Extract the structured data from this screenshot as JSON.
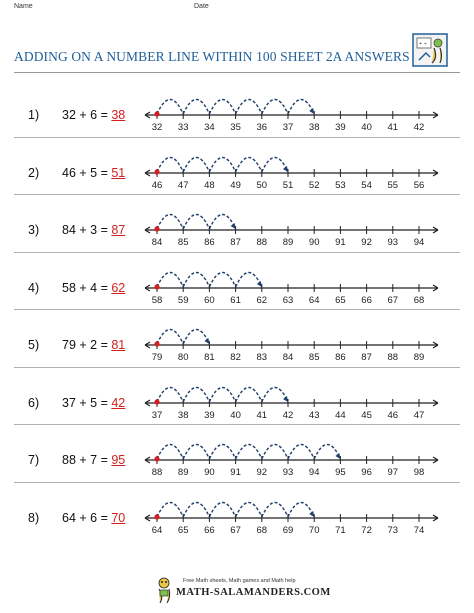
{
  "header": {
    "name_label": "Name",
    "date_label": "Date"
  },
  "title": "ADDING ON A NUMBER LINE WITHIN 100 SHEET 2A ANSWERS",
  "questions": [
    {
      "number": "1)",
      "expression": "32 + 6 =",
      "answer": "38",
      "start": 32,
      "jumps": 6
    },
    {
      "number": "2)",
      "expression": "46 + 5 =",
      "answer": "51",
      "start": 46,
      "jumps": 5
    },
    {
      "number": "3)",
      "expression": "84 + 3 =",
      "answer": "87",
      "start": 84,
      "jumps": 3
    },
    {
      "number": "4)",
      "expression": "58 + 4 =",
      "answer": "62",
      "start": 58,
      "jumps": 4
    },
    {
      "number": "5)",
      "expression": "79 + 2 =",
      "answer": "81",
      "start": 79,
      "jumps": 2
    },
    {
      "number": "6)",
      "expression": "37 + 5 =",
      "answer": "42",
      "start": 37,
      "jumps": 5
    },
    {
      "number": "7)",
      "expression": "88 + 7 =",
      "answer": "95",
      "start": 88,
      "jumps": 7
    },
    {
      "number": "8)",
      "expression": "64 + 6 =",
      "answer": "70",
      "start": 64,
      "jumps": 6
    }
  ],
  "colors": {
    "title": "#1f5f99",
    "answer": "#d42020",
    "start_dot": "#d42020",
    "arcs": "#1f3f6a",
    "line": "#222222"
  },
  "footer": {
    "tagline": "Free Math sheets, Math games and Math help",
    "site": "MATH-SALAMANDERS.COM"
  }
}
